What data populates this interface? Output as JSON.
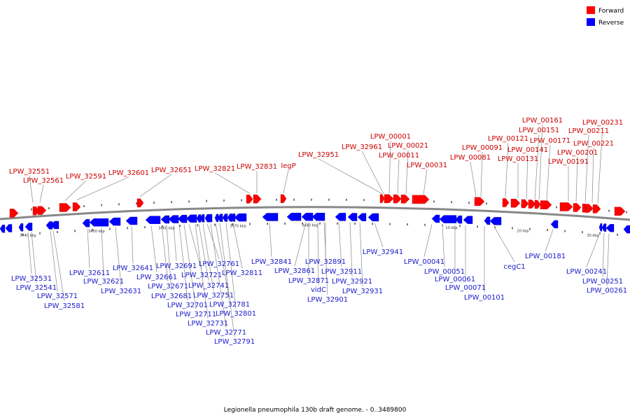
{
  "caption": "Legionella pneumophila 130b draft genome. - 0..3489800",
  "legend": {
    "forward_label": "Forward",
    "reverse_label": "Reverse",
    "forward_color": "#ff0000",
    "reverse_color": "#0000ff"
  },
  "colors": {
    "forward_label": "#cc0000",
    "reverse_label": "#1a1acc",
    "backbone": "#888888",
    "leader": "#888888"
  },
  "ticks": [
    "3440 kbp",
    "3450 kbp",
    "3460 kbp",
    "3470 kbp",
    "3480 kbp",
    "10 kbp",
    "20 kbp",
    "30 kbp"
  ],
  "forward_labels": [
    "LPW_32551",
    "LPW_32561",
    "LPW_32591",
    "LPW_32601",
    "LPW_32651",
    "LPW_32821",
    "LPW_32831",
    "legP",
    "LPW_32951",
    "LPW_32961",
    "LPW_00001",
    "LPW_00011",
    "LPW_00021",
    "LPW_00031",
    "LPW_00081",
    "LPW_00091",
    "LPW_00121",
    "LPW_00131",
    "LPW_00141",
    "LPW_00151",
    "LPW_00161",
    "LPW_00171",
    "LPW_00191",
    "LPW_00201",
    "LPW_00211",
    "LPW_00221",
    "LPW_00231"
  ],
  "reverse_labels": [
    "LPW_32531",
    "LPW_32541",
    "LPW_32571",
    "LPW_32581",
    "LPW_32611",
    "LPW_32621",
    "LPW_32631",
    "LPW_32641",
    "LPW_32661",
    "LPW_32671",
    "LPW_32681",
    "LPW_32691",
    "LPW_32701",
    "LPW_32711",
    "LPW_32721",
    "LPW_32731",
    "LPW_32741",
    "LPW_32751",
    "LPW_32761",
    "LPW_32771",
    "LPW_32781",
    "LPW_32791",
    "LPW_32801",
    "LPW_32811",
    "LPW_32841",
    "LPW_32861",
    "LPW_32871",
    "vidC",
    "LPW_32891",
    "LPW_32901",
    "LPW_32911",
    "LPW_32921",
    "LPW_32931",
    "LPW_32941",
    "LPW_00041",
    "LPW_00051",
    "LPW_00061",
    "LPW_00071",
    "LPW_00101",
    "cegC1",
    "LPW_00181",
    "LPW_00241",
    "LPW_00251",
    "LPW_00261"
  ]
}
